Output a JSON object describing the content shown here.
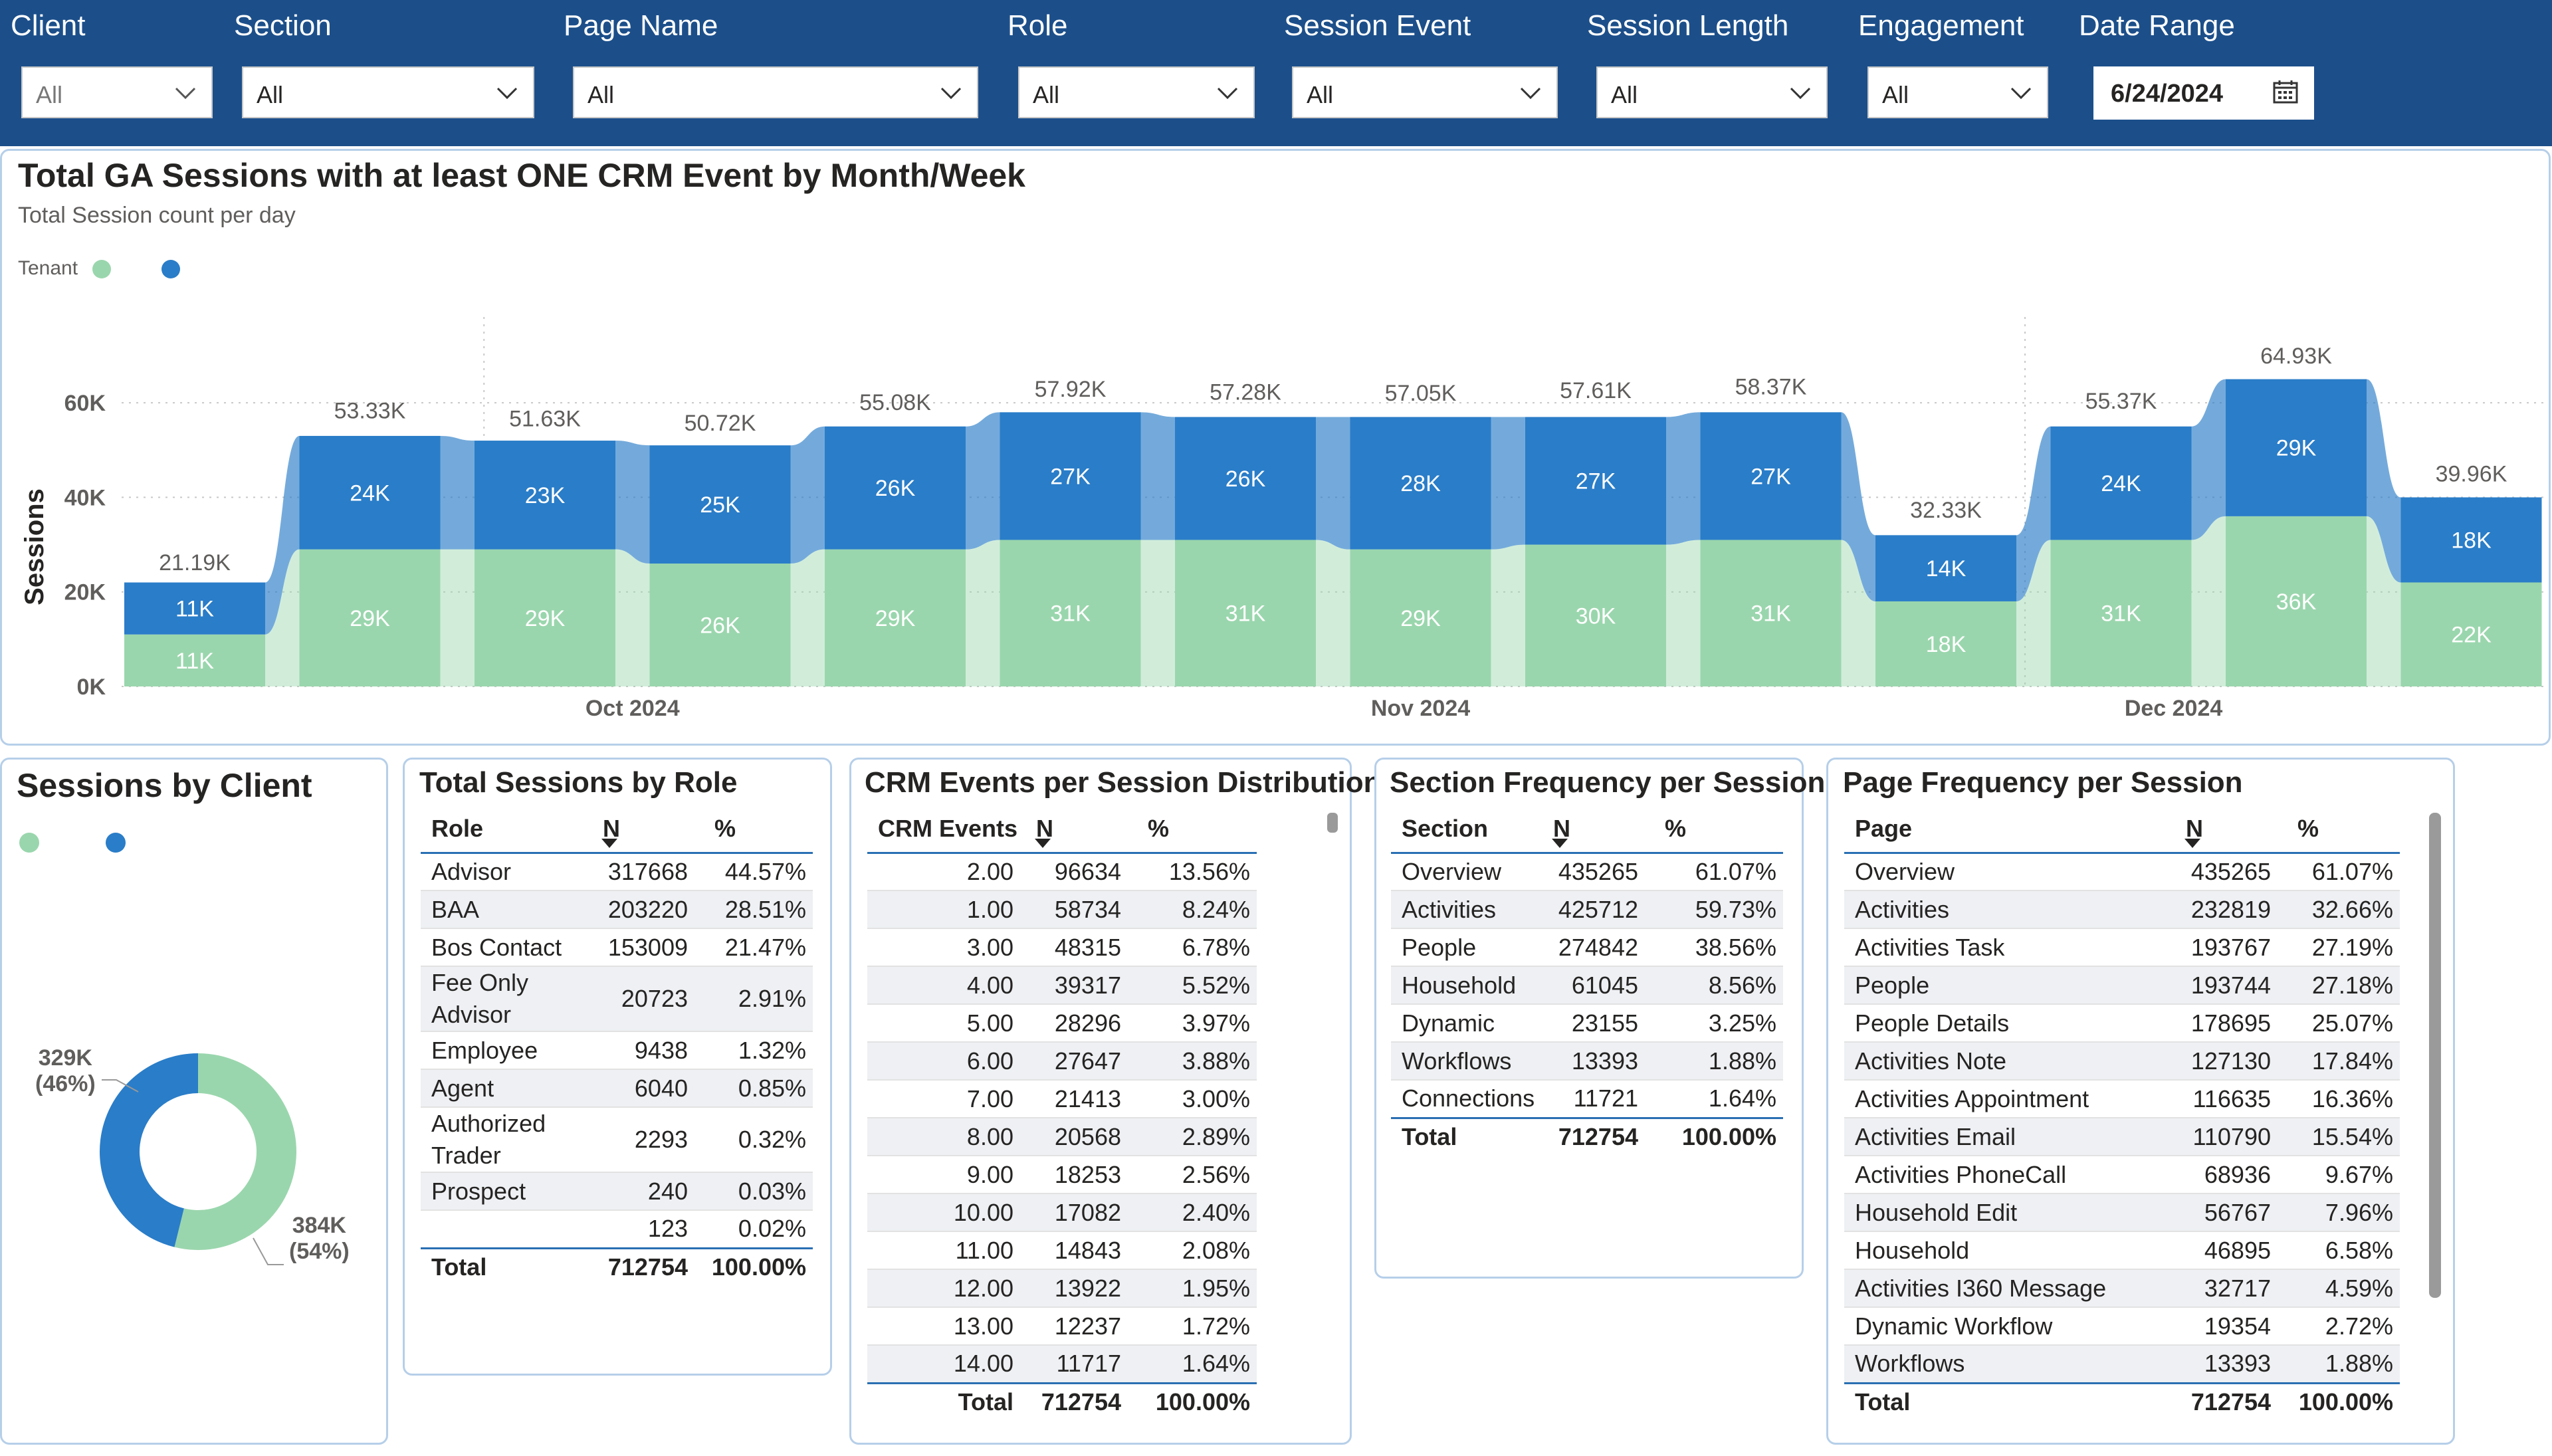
{
  "filters": [
    {
      "label": "Client",
      "value": "All"
    },
    {
      "label": "Section",
      "value": "All"
    },
    {
      "label": "Page Name",
      "value": "All"
    },
    {
      "label": "Role",
      "value": "All"
    },
    {
      "label": "Session Event",
      "value": "All"
    },
    {
      "label": "Session Length",
      "value": "All"
    },
    {
      "label": "Engagement",
      "value": "All"
    }
  ],
  "date_range": {
    "label": "Date Range",
    "value": "6/24/2024"
  },
  "colors": {
    "header": "#1c4f8a",
    "green": "#9ad6ad",
    "blue": "#2a7dc8",
    "panel_border": "#b6cfe9"
  },
  "chart_data": {
    "type": "bar",
    "title": "Total GA Sessions with at least ONE CRM Event by Month/Week",
    "subtitle": "Total Session count per day",
    "legend_title": "Tenant",
    "ylabel": "Sessions",
    "ylim": [
      0,
      70000
    ],
    "yticks": [
      "0K",
      "20K",
      "40K",
      "60K"
    ],
    "ytick_values": [
      0,
      20000,
      40000,
      60000
    ],
    "month_labels": [
      {
        "label": "Oct 2024",
        "at_bar": 2.5
      },
      {
        "label": "Nov 2024",
        "at_bar": 7
      },
      {
        "label": "Dec 2024",
        "at_bar": 11.3
      }
    ],
    "series": [
      {
        "name": "green",
        "values": [
          11000,
          29000,
          29000,
          26000,
          29000,
          31000,
          31000,
          29000,
          30000,
          31000,
          18000,
          31000,
          36000,
          22000
        ],
        "labels": [
          "11K",
          "29K",
          "29K",
          "26K",
          "29K",
          "31K",
          "31K",
          "29K",
          "30K",
          "31K",
          "18K",
          "31K",
          "36K",
          "22K"
        ]
      },
      {
        "name": "blue",
        "values": [
          11000,
          24000,
          23000,
          25000,
          26000,
          27000,
          26000,
          28000,
          27000,
          27000,
          14000,
          24000,
          29000,
          18000
        ],
        "labels": [
          "11K",
          "24K",
          "23K",
          "25K",
          "26K",
          "27K",
          "26K",
          "28K",
          "27K",
          "27K",
          "14K",
          "24K",
          "29K",
          "18K"
        ]
      }
    ],
    "totals": [
      21190,
      53330,
      51630,
      50720,
      55080,
      57920,
      57280,
      57050,
      57610,
      58370,
      32330,
      55370,
      64930,
      39960
    ],
    "total_labels": [
      "21.19K",
      "53.33K",
      "51.63K",
      "50.72K",
      "55.08K",
      "57.92K",
      "57.28K",
      "57.05K",
      "57.61K",
      "58.37K",
      "32.33K",
      "55.37K",
      "64.93K",
      "39.96K"
    ]
  },
  "donut": {
    "title": "Sessions by Client",
    "slices": [
      {
        "name": "green",
        "value": 384,
        "label": "384K",
        "pct": "(54%)"
      },
      {
        "name": "blue",
        "value": 329,
        "label": "329K",
        "pct": "(46%)"
      }
    ]
  },
  "role_table": {
    "title": "Total Sessions by Role",
    "headers": [
      "Role",
      "N",
      "%"
    ],
    "rows": [
      {
        "role": "Advisor",
        "n": "317668",
        "pct": "44.57%"
      },
      {
        "role": "BAA",
        "n": "203220",
        "pct": "28.51%"
      },
      {
        "role": "Bos Contact",
        "n": "153009",
        "pct": "21.47%"
      },
      {
        "role": "Fee Only Advisor",
        "n": "20723",
        "pct": "2.91%"
      },
      {
        "role": "Employee",
        "n": "9438",
        "pct": "1.32%"
      },
      {
        "role": "Agent",
        "n": "6040",
        "pct": "0.85%"
      },
      {
        "role": "Authorized Trader",
        "n": "2293",
        "pct": "0.32%"
      },
      {
        "role": "Prospect",
        "n": "240",
        "pct": "0.03%"
      },
      {
        "role": "",
        "n": "123",
        "pct": "0.02%"
      }
    ],
    "total": {
      "label": "Total",
      "n": "712754",
      "pct": "100.00%"
    }
  },
  "crm_table": {
    "title": "CRM Events per Session Distribution",
    "headers": [
      "CRM Events",
      "N",
      "%"
    ],
    "rows": [
      {
        "events": "2.00",
        "n": "96634",
        "pct": "13.56%"
      },
      {
        "events": "1.00",
        "n": "58734",
        "pct": "8.24%"
      },
      {
        "events": "3.00",
        "n": "48315",
        "pct": "6.78%"
      },
      {
        "events": "4.00",
        "n": "39317",
        "pct": "5.52%"
      },
      {
        "events": "5.00",
        "n": "28296",
        "pct": "3.97%"
      },
      {
        "events": "6.00",
        "n": "27647",
        "pct": "3.88%"
      },
      {
        "events": "7.00",
        "n": "21413",
        "pct": "3.00%"
      },
      {
        "events": "8.00",
        "n": "20568",
        "pct": "2.89%"
      },
      {
        "events": "9.00",
        "n": "18253",
        "pct": "2.56%"
      },
      {
        "events": "10.00",
        "n": "17082",
        "pct": "2.40%"
      },
      {
        "events": "11.00",
        "n": "14843",
        "pct": "2.08%"
      },
      {
        "events": "12.00",
        "n": "13922",
        "pct": "1.95%"
      },
      {
        "events": "13.00",
        "n": "12237",
        "pct": "1.72%"
      },
      {
        "events": "14.00",
        "n": "11717",
        "pct": "1.64%"
      }
    ],
    "total": {
      "label": "Total",
      "n": "712754",
      "pct": "100.00%"
    }
  },
  "section_table": {
    "title": "Section Frequency per Session",
    "headers": [
      "Section",
      "N",
      "%"
    ],
    "rows": [
      {
        "section": "Overview",
        "n": "435265",
        "pct": "61.07%"
      },
      {
        "section": "Activities",
        "n": "425712",
        "pct": "59.73%"
      },
      {
        "section": "People",
        "n": "274842",
        "pct": "38.56%"
      },
      {
        "section": "Household",
        "n": "61045",
        "pct": "8.56%"
      },
      {
        "section": "Dynamic",
        "n": "23155",
        "pct": "3.25%"
      },
      {
        "section": "Workflows",
        "n": "13393",
        "pct": "1.88%"
      },
      {
        "section": "Connections",
        "n": "11721",
        "pct": "1.64%"
      }
    ],
    "total": {
      "label": "Total",
      "n": "712754",
      "pct": "100.00%"
    }
  },
  "page_table": {
    "title": "Page Frequency per Session",
    "headers": [
      "Page",
      "N",
      "%"
    ],
    "rows": [
      {
        "page": "Overview",
        "n": "435265",
        "pct": "61.07%"
      },
      {
        "page": "Activities",
        "n": "232819",
        "pct": "32.66%"
      },
      {
        "page": "Activities Task",
        "n": "193767",
        "pct": "27.19%"
      },
      {
        "page": "People",
        "n": "193744",
        "pct": "27.18%"
      },
      {
        "page": "People Details",
        "n": "178695",
        "pct": "25.07%"
      },
      {
        "page": "Activities Note",
        "n": "127130",
        "pct": "17.84%"
      },
      {
        "page": "Activities Appointment",
        "n": "116635",
        "pct": "16.36%"
      },
      {
        "page": "Activities Email",
        "n": "110790",
        "pct": "15.54%"
      },
      {
        "page": "Activities PhoneCall",
        "n": "68936",
        "pct": "9.67%"
      },
      {
        "page": "Household Edit",
        "n": "56767",
        "pct": "7.96%"
      },
      {
        "page": "Household",
        "n": "46895",
        "pct": "6.58%"
      },
      {
        "page": "Activities I360 Message",
        "n": "32717",
        "pct": "4.59%"
      },
      {
        "page": "Dynamic Workflow",
        "n": "19354",
        "pct": "2.72%"
      },
      {
        "page": "Workflows",
        "n": "13393",
        "pct": "1.88%"
      }
    ],
    "total": {
      "label": "Total",
      "n": "712754",
      "pct": "100.00%"
    }
  }
}
